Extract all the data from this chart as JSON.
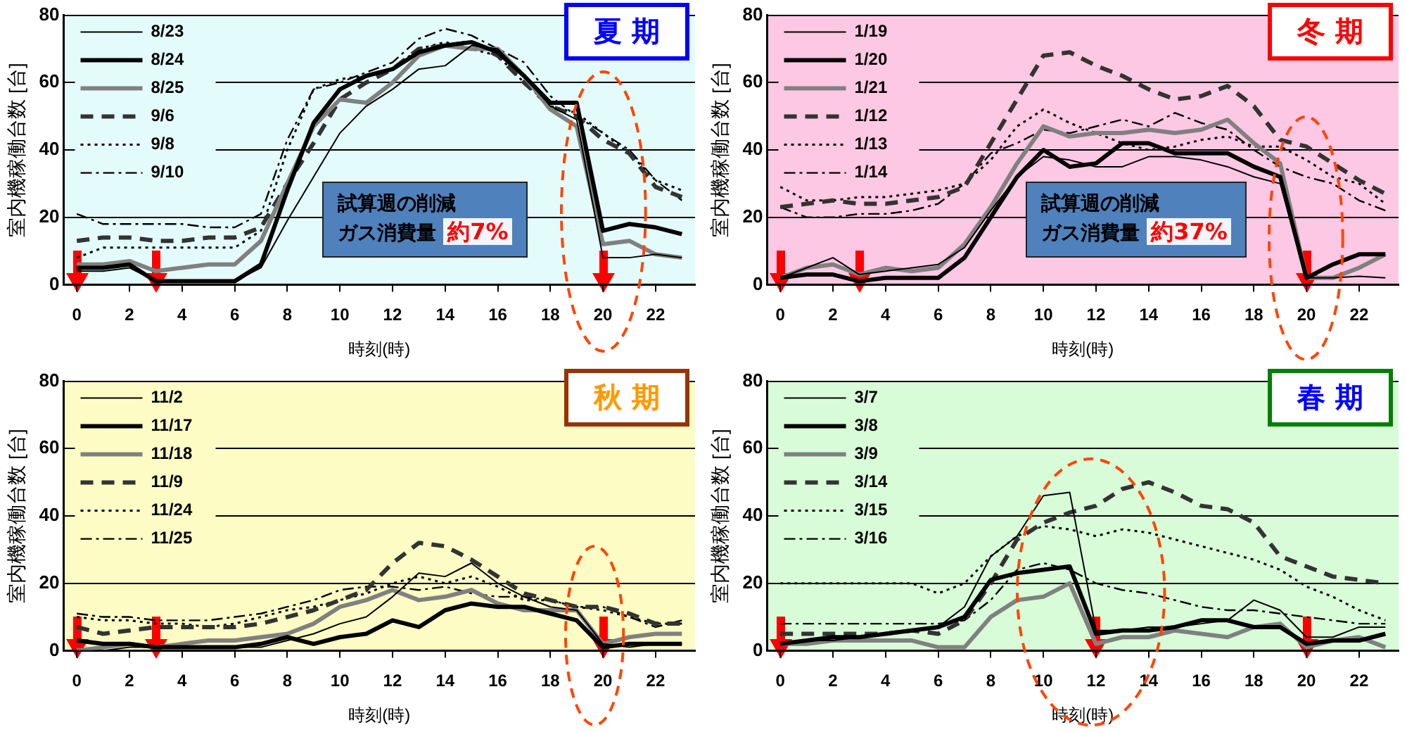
{
  "chart_data": [
    {
      "type": "line",
      "title": "夏 期",
      "xlabel": "時刻(時)",
      "ylabel": "室内機稼働台数 [台]",
      "annotations": [
        "試算週の削減",
        "ガス消費量 約7%"
      ],
      "x": [
        0,
        1,
        2,
        3,
        4,
        5,
        6,
        7,
        8,
        9,
        10,
        11,
        12,
        13,
        14,
        15,
        16,
        17,
        18,
        19,
        20,
        21,
        22,
        23
      ],
      "xlim": [
        -0.5,
        23.5
      ],
      "xticks": [
        0,
        2,
        4,
        6,
        8,
        10,
        12,
        14,
        16,
        18,
        20,
        22
      ],
      "ylim": [
        0,
        80
      ],
      "yticks": [
        0,
        20,
        40,
        60,
        80
      ],
      "grid": "y",
      "legend": "top left",
      "series": [
        {
          "name": "8/23",
          "color": "#000000",
          "line_style": "solid",
          "values": [
            4,
            4,
            5,
            1,
            1,
            1,
            1,
            5,
            19,
            32,
            45,
            53,
            58,
            64,
            65,
            71,
            70,
            62,
            53,
            49,
            8,
            8,
            9,
            8
          ]
        },
        {
          "name": "8/24",
          "color": "#000000",
          "line_style": "solid",
          "values": [
            5,
            5,
            6,
            1,
            1,
            1,
            1,
            6,
            28,
            48,
            58,
            62,
            64,
            69,
            71,
            72,
            69,
            62,
            54,
            54,
            16,
            18,
            17,
            15
          ]
        },
        {
          "name": "8/25",
          "color": "#808080",
          "line_style": "solid",
          "values": [
            6,
            6,
            7,
            4,
            5,
            6,
            6,
            13,
            30,
            47,
            55,
            54,
            60,
            68,
            71,
            70,
            70,
            62,
            52,
            47,
            12,
            13,
            9,
            8
          ]
        },
        {
          "name": "9/6",
          "color": "#333333",
          "line_style": "dashed",
          "values": [
            13,
            14,
            14,
            13,
            13,
            14,
            14,
            17,
            30,
            42,
            55,
            60,
            64,
            70,
            71,
            72,
            68,
            60,
            53,
            50,
            43,
            39,
            29,
            26
          ]
        },
        {
          "name": "9/8",
          "color": "#000000",
          "line_style": "dotted",
          "values": [
            8,
            11,
            11,
            11,
            11,
            11,
            11,
            16,
            40,
            58,
            61,
            62,
            64,
            70,
            72,
            70,
            68,
            60,
            53,
            51,
            45,
            39,
            31,
            28
          ]
        },
        {
          "name": "9/10",
          "color": "#000000",
          "line_style": "dashdot",
          "values": [
            21,
            18,
            18,
            18,
            18,
            17,
            17,
            21,
            43,
            58,
            60,
            63,
            66,
            73,
            76,
            74,
            70,
            66,
            56,
            50,
            45,
            40,
            31,
            25
          ]
        }
      ]
    },
    {
      "type": "line",
      "title": "冬 期",
      "xlabel": "時刻(時)",
      "ylabel": "室内機稼働台数 [台]",
      "annotations": [
        "試算週の削減",
        "ガス消費量 約37%"
      ],
      "x": [
        0,
        1,
        2,
        3,
        4,
        5,
        6,
        7,
        8,
        9,
        10,
        11,
        12,
        13,
        14,
        15,
        16,
        17,
        18,
        19,
        20,
        21,
        22,
        23
      ],
      "xlim": [
        -0.5,
        23.5
      ],
      "xticks": [
        0,
        2,
        4,
        6,
        8,
        10,
        12,
        14,
        16,
        18,
        20,
        22
      ],
      "ylim": [
        0,
        80
      ],
      "yticks": [
        0,
        20,
        40,
        60,
        80
      ],
      "grid": "y",
      "legend": "top left",
      "series": [
        {
          "name": "1/19",
          "color": "#000000",
          "line_style": "solid",
          "values": [
            2,
            5,
            8,
            3,
            4,
            5,
            6,
            11,
            22,
            32,
            38,
            37,
            35,
            35,
            38,
            38,
            37,
            35,
            32,
            30,
            2,
            2,
            2.5,
            2
          ]
        },
        {
          "name": "1/20",
          "color": "#000000",
          "line_style": "solid",
          "values": [
            2,
            3,
            3,
            1,
            2,
            2,
            2,
            8,
            20,
            32,
            40,
            35,
            36,
            42,
            42,
            39,
            39,
            39,
            35,
            32,
            2,
            6,
            9,
            9
          ]
        },
        {
          "name": "1/21",
          "color": "#808080",
          "line_style": "solid",
          "values": [
            2,
            5,
            6,
            3,
            5,
            4,
            5,
            12,
            23,
            36,
            47,
            44,
            45,
            45,
            46,
            45,
            46,
            49,
            42,
            36,
            2,
            2,
            5,
            9
          ]
        },
        {
          "name": "1/12",
          "color": "#333333",
          "line_style": "dashed",
          "values": [
            23,
            24,
            25,
            24,
            24,
            25,
            26,
            29,
            42,
            55,
            68,
            69,
            65,
            62,
            58,
            55,
            56,
            59,
            53,
            43,
            41,
            36,
            31,
            27
          ]
        },
        {
          "name": "1/13",
          "color": "#000000",
          "line_style": "dotted",
          "values": [
            29,
            25,
            25,
            26,
            26,
            27,
            28,
            30,
            37,
            47,
            52,
            48,
            45,
            42,
            40,
            41,
            43,
            44,
            41,
            41,
            37,
            32,
            30,
            24
          ]
        },
        {
          "name": "1/14",
          "color": "#000000",
          "line_style": "dashdot",
          "values": [
            23,
            20,
            20,
            21,
            21,
            22,
            24,
            30,
            39,
            42,
            46,
            45,
            47,
            49,
            47,
            51,
            48,
            46,
            40,
            35,
            32,
            30,
            25,
            22
          ]
        }
      ]
    },
    {
      "type": "line",
      "title": "秋 期",
      "xlabel": "時刻(時)",
      "ylabel": "室内機稼働台数 [台]",
      "x": [
        0,
        1,
        2,
        3,
        4,
        5,
        6,
        7,
        8,
        9,
        10,
        11,
        12,
        13,
        14,
        15,
        16,
        17,
        18,
        19,
        20,
        21,
        22,
        23
      ],
      "xlim": [
        -0.5,
        23.5
      ],
      "xticks": [
        0,
        2,
        4,
        6,
        8,
        10,
        12,
        14,
        16,
        18,
        20,
        22
      ],
      "ylim": [
        0,
        80
      ],
      "yticks": [
        0,
        20,
        40,
        60,
        80
      ],
      "grid": "y",
      "legend": "top left",
      "series": [
        {
          "name": "11/2",
          "color": "#000000",
          "line_style": "solid",
          "values": [
            0,
            0,
            1,
            1,
            1,
            1,
            1,
            1,
            3,
            5,
            8,
            10,
            16,
            23,
            22,
            26,
            20,
            16,
            13,
            12,
            2,
            1,
            2,
            2
          ]
        },
        {
          "name": "11/17",
          "color": "#000000",
          "line_style": "solid",
          "values": [
            3,
            2,
            2,
            1,
            1,
            1,
            1,
            2,
            4,
            2,
            4,
            5,
            9,
            7,
            12,
            14,
            13,
            13,
            11,
            9,
            1,
            2,
            2,
            2
          ]
        },
        {
          "name": "11/18",
          "color": "#808080",
          "line_style": "solid",
          "values": [
            0,
            1,
            2,
            1,
            2,
            3,
            3,
            4,
            5,
            8,
            13,
            15,
            18,
            15,
            16,
            18,
            14,
            12,
            12,
            12,
            2,
            4,
            5,
            5
          ]
        },
        {
          "name": "11/9",
          "color": "#333333",
          "line_style": "dashed",
          "values": [
            7,
            5,
            6,
            7,
            7,
            7,
            7,
            8,
            10,
            12,
            15,
            18,
            26,
            32,
            31,
            27,
            22,
            17,
            15,
            13,
            13,
            11,
            8,
            8
          ]
        },
        {
          "name": "11/24",
          "color": "#000000",
          "line_style": "dotted",
          "values": [
            10,
            9,
            9,
            8,
            8,
            7,
            8,
            10,
            12,
            13,
            15,
            17,
            20,
            22,
            20,
            22,
            19,
            15,
            15,
            13,
            12,
            10,
            8,
            8
          ]
        },
        {
          "name": "11/25",
          "color": "#000000",
          "line_style": "dashdot",
          "values": [
            11,
            10,
            10,
            9,
            9,
            9,
            10,
            11,
            13,
            15,
            18,
            19,
            19,
            18,
            19,
            17,
            16,
            16,
            15,
            13,
            13,
            10,
            7,
            9
          ]
        }
      ]
    },
    {
      "type": "line",
      "title": "春 期",
      "xlabel": "時刻(時)",
      "ylabel": "室内機稼働台数 [台]",
      "x": [
        0,
        1,
        2,
        3,
        4,
        5,
        6,
        7,
        8,
        9,
        10,
        11,
        12,
        13,
        14,
        15,
        16,
        17,
        18,
        19,
        20,
        21,
        22,
        23
      ],
      "xlim": [
        -0.5,
        23.5
      ],
      "xticks": [
        0,
        2,
        4,
        6,
        8,
        10,
        12,
        14,
        16,
        18,
        20,
        22
      ],
      "ylim": [
        0,
        80
      ],
      "yticks": [
        0,
        20,
        40,
        60,
        80
      ],
      "grid": "y",
      "legend": "top left",
      "series": [
        {
          "name": "3/7",
          "color": "#000000",
          "line_style": "solid",
          "values": [
            2,
            3,
            3,
            4,
            5,
            6,
            7,
            13,
            28,
            34,
            46,
            47,
            6,
            6,
            7,
            7,
            8,
            9,
            15,
            12,
            4,
            4,
            7,
            7
          ]
        },
        {
          "name": "3/8",
          "color": "#000000",
          "line_style": "solid",
          "values": [
            2,
            3,
            4,
            4,
            5,
            6,
            7,
            10,
            21,
            23,
            24,
            25,
            5,
            6,
            6,
            7,
            9,
            9,
            7,
            7,
            2,
            3,
            3,
            5
          ]
        },
        {
          "name": "3/9",
          "color": "#808080",
          "line_style": "solid",
          "values": [
            2,
            2,
            3,
            3,
            3,
            3,
            1,
            1,
            10,
            15,
            16,
            20,
            2,
            4,
            4,
            6,
            5,
            4,
            7,
            8,
            1,
            3,
            4,
            1
          ]
        },
        {
          "name": "3/14",
          "color": "#333333",
          "line_style": "dashed",
          "values": [
            5,
            5,
            5,
            5,
            5,
            6,
            5,
            9,
            20,
            33,
            38,
            41,
            43,
            48,
            50,
            47,
            43,
            42,
            38,
            28,
            25,
            22,
            21,
            20
          ]
        },
        {
          "name": "3/15",
          "color": "#000000",
          "line_style": "dotted",
          "values": [
            20,
            20,
            20,
            20,
            20,
            20,
            17,
            20,
            28,
            34,
            37,
            36,
            34,
            36,
            35,
            33,
            31,
            29,
            27,
            24,
            19,
            16,
            12,
            9
          ]
        },
        {
          "name": "3/16",
          "color": "#000000",
          "line_style": "dashdot",
          "values": [
            8,
            8,
            8,
            8,
            8,
            8,
            8,
            9,
            15,
            24,
            26,
            24,
            20,
            18,
            17,
            15,
            13,
            12,
            12,
            11,
            10,
            9,
            8,
            8
          ]
        }
      ]
    }
  ]
}
